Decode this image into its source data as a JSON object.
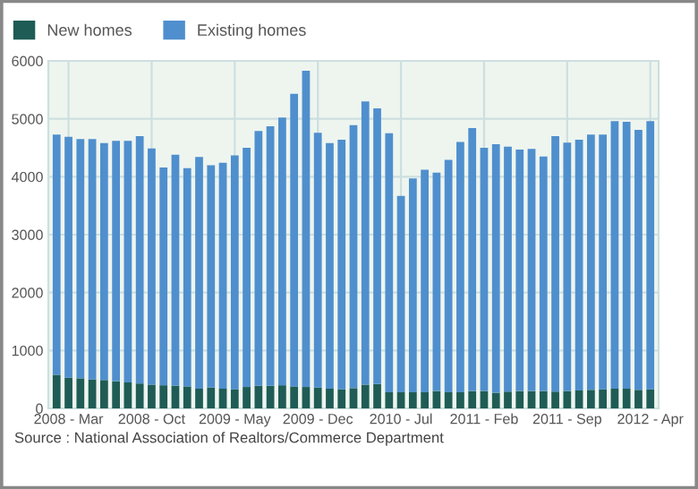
{
  "chart_data": {
    "type": "bar",
    "stacked": true,
    "categories": [
      null,
      "2008 - Mar",
      null,
      null,
      null,
      null,
      null,
      null,
      "2008 - Oct",
      null,
      null,
      null,
      null,
      null,
      null,
      "2009 - May",
      null,
      null,
      null,
      null,
      null,
      null,
      "2009 - Dec",
      null,
      null,
      null,
      null,
      null,
      null,
      "2010 - Jul",
      null,
      null,
      null,
      null,
      null,
      null,
      "2011 - Feb",
      null,
      null,
      null,
      null,
      null,
      null,
      "2011 - Sep",
      null,
      null,
      null,
      null,
      null,
      null,
      "2012 - Apr"
    ],
    "series": [
      {
        "name": "New homes",
        "color": "#1f5c55",
        "values": [
          580,
          530,
          520,
          500,
          490,
          470,
          450,
          430,
          410,
          400,
          390,
          380,
          340,
          360,
          340,
          330,
          370,
          390,
          390,
          400,
          380,
          370,
          360,
          340,
          330,
          350,
          410,
          420,
          280,
          280,
          280,
          280,
          300,
          280,
          280,
          300,
          300,
          270,
          290,
          300,
          300,
          300,
          290,
          300,
          310,
          320,
          330,
          340,
          340,
          320,
          330
        ]
      },
      {
        "name": "Existing homes",
        "color": "#4f8fce",
        "values": [
          4150,
          4160,
          4130,
          4150,
          4090,
          4150,
          4170,
          4270,
          4080,
          3760,
          3990,
          3770,
          4000,
          3840,
          3900,
          4040,
          4130,
          4400,
          4480,
          4620,
          5050,
          5460,
          4400,
          4240,
          4310,
          4540,
          4890,
          4760,
          4470,
          3390,
          3690,
          3840,
          3770,
          4010,
          4320,
          4540,
          4200,
          4290,
          4230,
          4170,
          4180,
          4050,
          4410,
          4290,
          4330,
          4410,
          4400,
          4620,
          4610,
          4490,
          4630
        ]
      }
    ],
    "ylim": [
      0,
      6000
    ],
    "yticks": [
      0,
      1000,
      2000,
      3000,
      4000,
      5000,
      6000
    ],
    "grid": true,
    "legend": "top left",
    "annotations": [
      "Source : National Association of Realtors/Commerce Department"
    ]
  }
}
